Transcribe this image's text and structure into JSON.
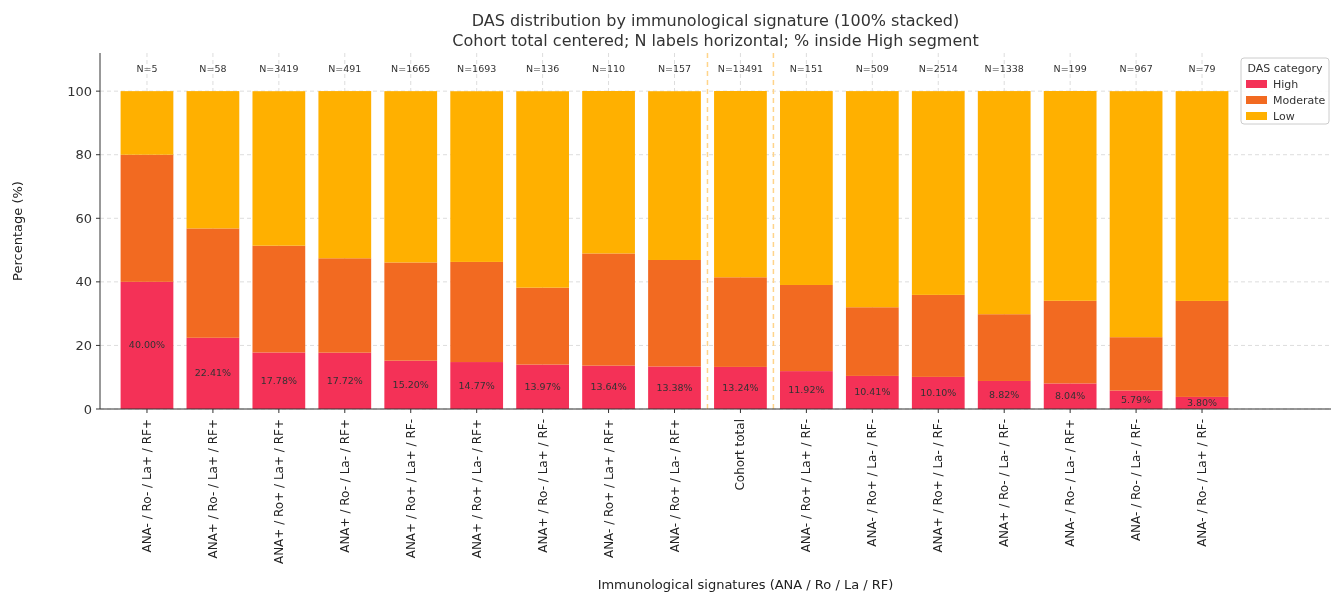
{
  "chart_data": {
    "type": "bar",
    "stacked": true,
    "title": "DAS distribution by immunological signature (100% stacked)",
    "subtitle": "Cohort total centered; N labels horizontal; % inside High segment",
    "xlabel": "Immunological signatures (ANA / Ro / La / RF)",
    "ylabel": "Percentage (%)",
    "legend_title": "DAS category",
    "legend": "top right",
    "grid": true,
    "categories": [
      "ANA- / Ro- / La+ / RF+",
      "ANA+ / Ro- / La+ / RF+",
      "ANA+ / Ro+ / La+ / RF+",
      "ANA+ / Ro- / La- / RF+",
      "ANA+ / Ro+ / La+ / RF-",
      "ANA+ / Ro+ / La- / RF+",
      "ANA+ / Ro- / La+ / RF-",
      "ANA- / Ro+ / La+ / RF+",
      "ANA- / Ro+ / La- / RF+",
      "Cohort total",
      "ANA- / Ro+ / La+ / RF-",
      "ANA- / Ro+ / La- / RF-",
      "ANA+ / Ro+ / La- / RF-",
      "ANA+ / Ro- / La- / RF-",
      "ANA- / Ro- / La- / RF+",
      "ANA- / Ro- / La- / RF-",
      "ANA- / Ro- / La+ / RF-"
    ],
    "ylim": [
      0,
      112
    ],
    "yticks": [
      0,
      20,
      40,
      60,
      80,
      100
    ],
    "series": [
      {
        "name": "High",
        "color": "#f43157",
        "values": [
          40.0,
          22.41,
          17.78,
          17.72,
          15.2,
          14.77,
          13.97,
          13.64,
          13.38,
          13.24,
          11.92,
          10.41,
          10.1,
          8.82,
          8.04,
          5.79,
          3.8
        ],
        "value_labels": [
          "40.00%",
          "22.41%",
          "17.78%",
          "17.72%",
          "15.20%",
          "14.77%",
          "13.97%",
          "13.64%",
          "13.38%",
          "13.24%",
          "11.92%",
          "10.41%",
          "10.10%",
          "8.82%",
          "8.04%",
          "5.79%",
          "3.80%"
        ]
      },
      {
        "name": "Moderate",
        "color": "#f26a21",
        "values": [
          40.0,
          34.4,
          33.6,
          29.7,
          30.9,
          31.5,
          24.2,
          35.3,
          33.5,
          28.2,
          27.1,
          21.6,
          25.8,
          21.0,
          26.0,
          16.8,
          30.2
        ]
      },
      {
        "name": "Low",
        "color": "#ffb000",
        "values": [
          20.0,
          43.2,
          48.6,
          52.6,
          53.9,
          53.7,
          61.8,
          51.1,
          53.1,
          58.6,
          61.0,
          68.0,
          64.1,
          70.2,
          66.0,
          77.4,
          66.0
        ]
      }
    ],
    "annotations": [
      "N=5",
      "N=58",
      "N=3419",
      "N=491",
      "N=1665",
      "N=1693",
      "N=136",
      "N=110",
      "N=157",
      "N=13491",
      "N=151",
      "N=509",
      "N=2514",
      "N=1338",
      "N=199",
      "N=967",
      "N=79"
    ]
  }
}
